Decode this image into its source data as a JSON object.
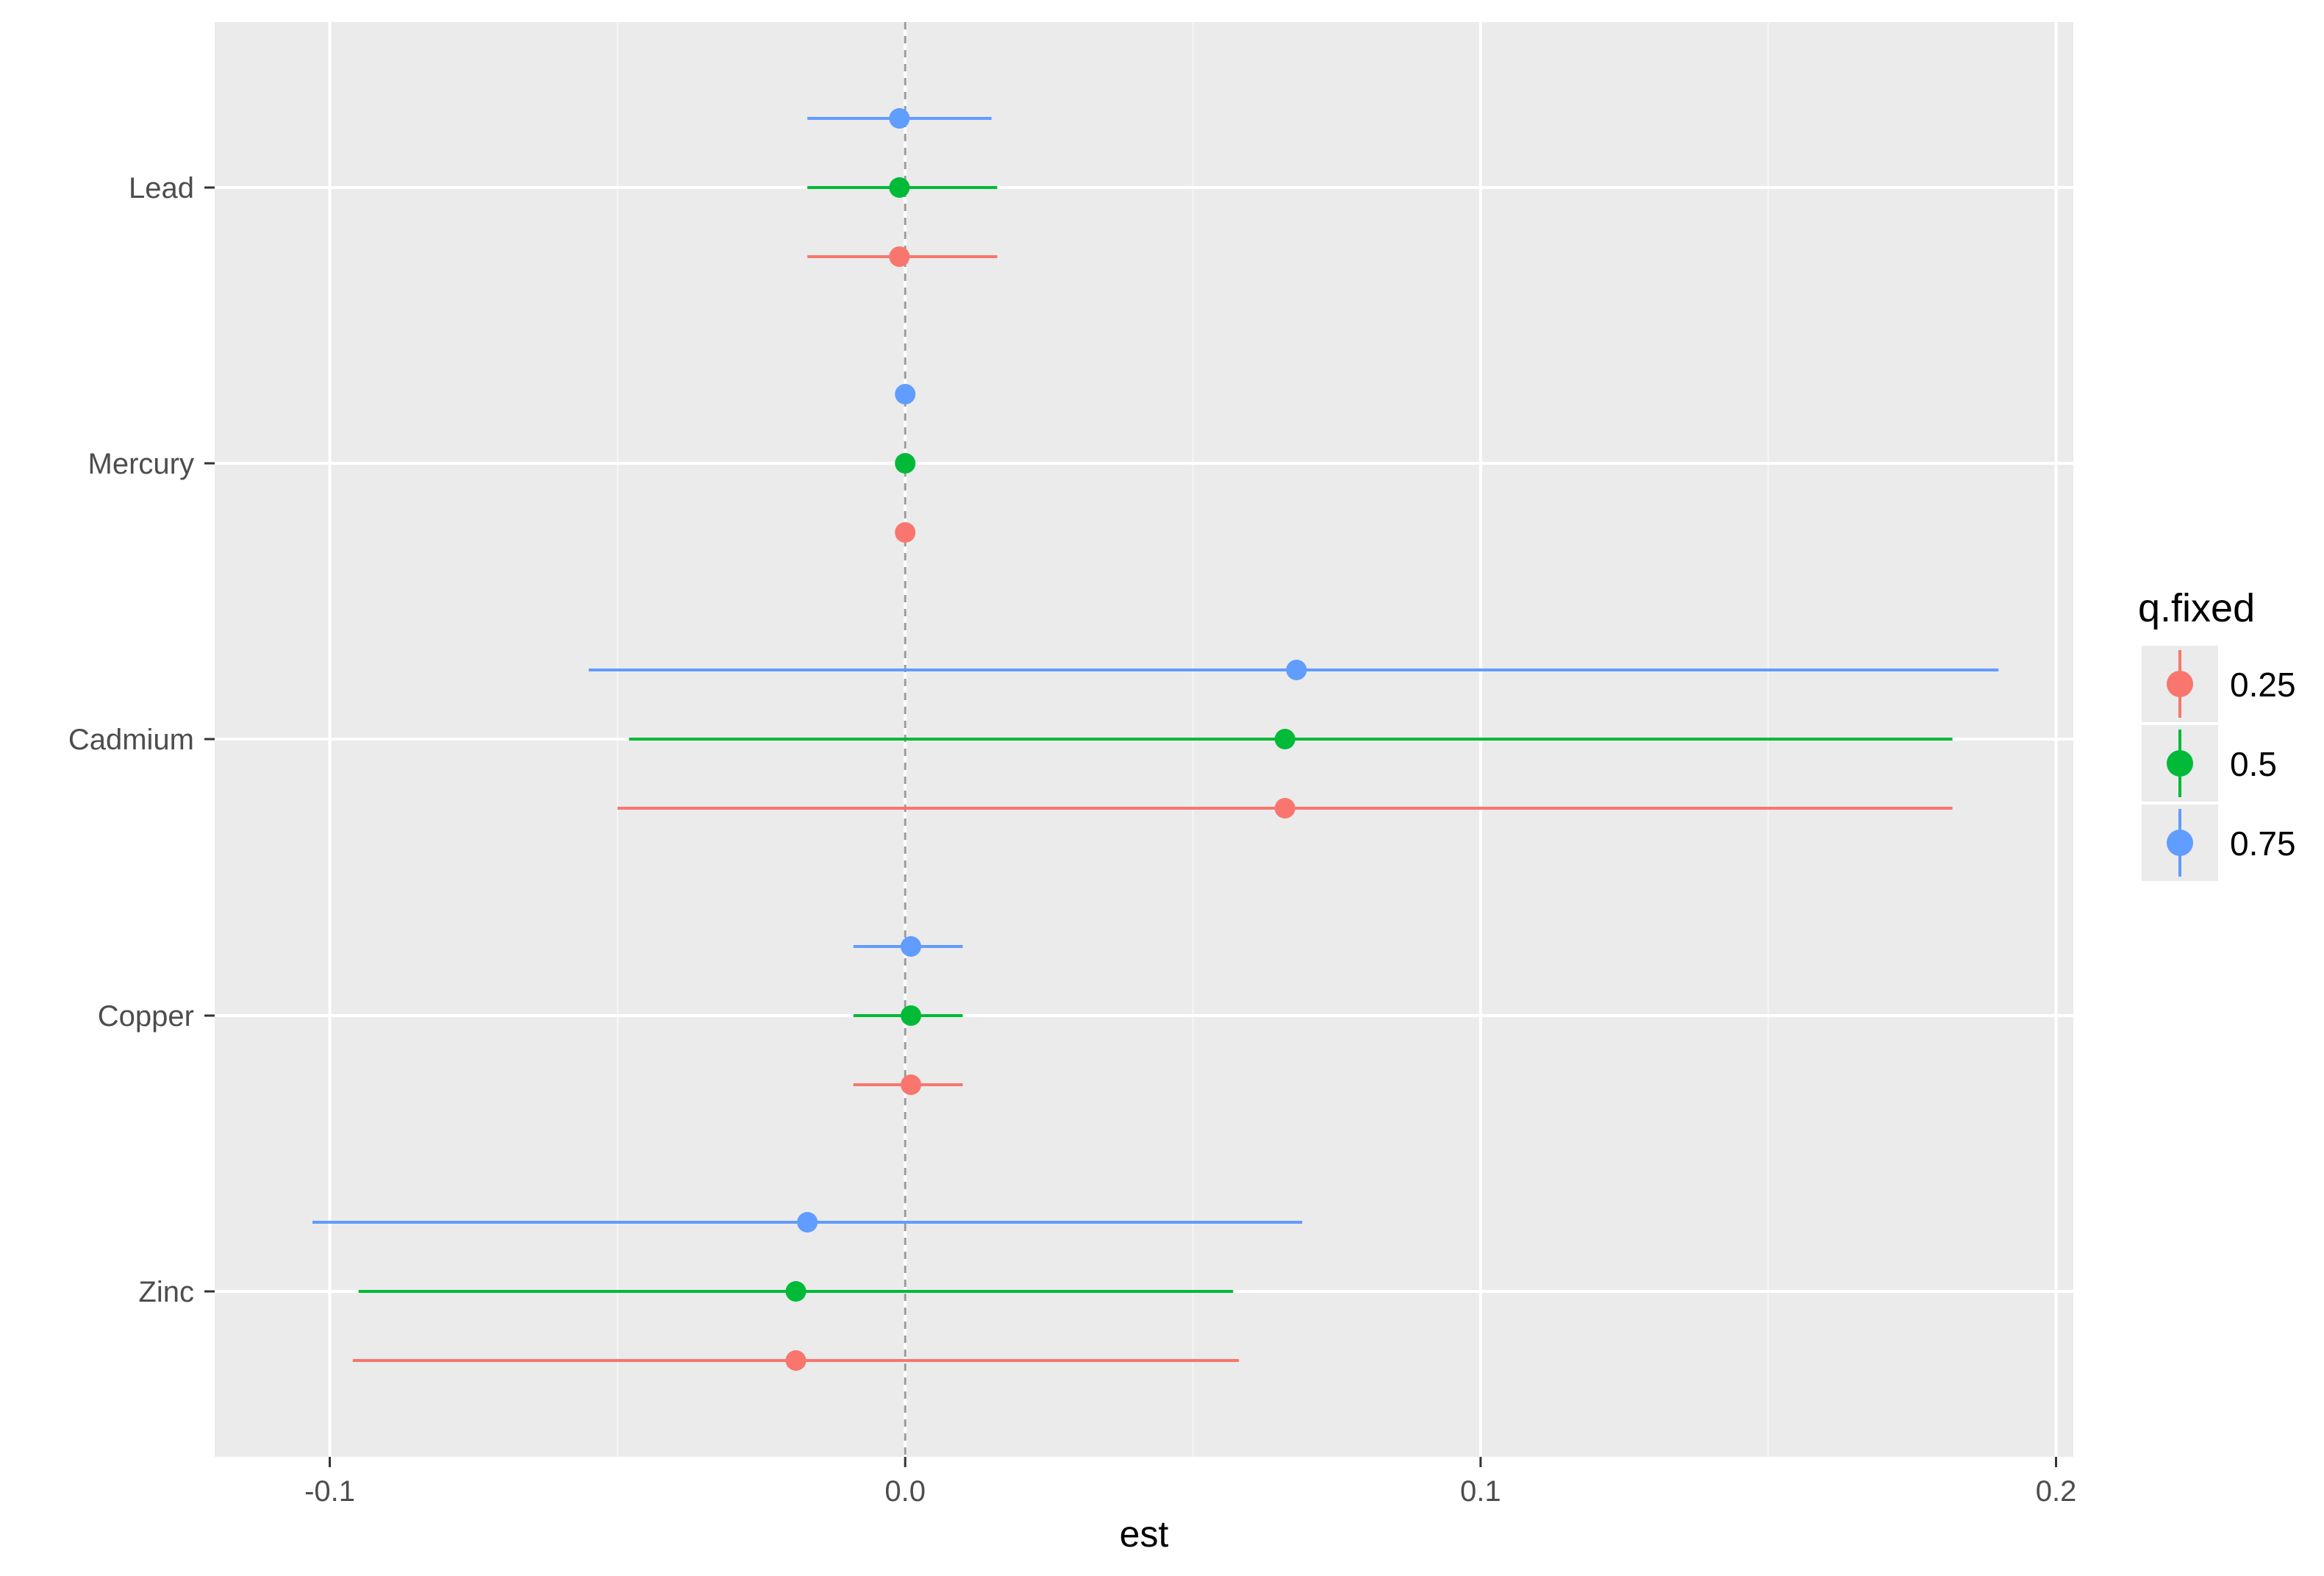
{
  "chart_data": {
    "type": "errorbar",
    "xlabel": "est",
    "ylabel": "",
    "xlim": [
      -0.12,
      0.203
    ],
    "x_ticks": [
      {
        "value": -0.1,
        "label": "-0.1"
      },
      {
        "value": 0.0,
        "label": "0.0"
      },
      {
        "value": 0.1,
        "label": "0.1"
      },
      {
        "value": 0.2,
        "label": "0.2"
      }
    ],
    "x_minor_ticks": [
      -0.05,
      0.05,
      0.15
    ],
    "reference_line": {
      "x": 0,
      "style": "dashed"
    },
    "categories": [
      "Lead",
      "Mercury",
      "Cadmium",
      "Copper",
      "Zinc"
    ],
    "legend": {
      "title": "q.fixed",
      "placement": "right"
    },
    "series": [
      {
        "name": "0.25",
        "color": "#F8766D",
        "points": [
          {
            "category": "Lead",
            "est": -0.001,
            "low": -0.017,
            "high": 0.016
          },
          {
            "category": "Mercury",
            "est": 0.0,
            "low": 0.0,
            "high": 0.0
          },
          {
            "category": "Cadmium",
            "est": 0.066,
            "low": -0.05,
            "high": 0.182
          },
          {
            "category": "Copper",
            "est": 0.001,
            "low": -0.009,
            "high": 0.01
          },
          {
            "category": "Zinc",
            "est": -0.019,
            "low": -0.096,
            "high": 0.058
          }
        ]
      },
      {
        "name": "0.5",
        "color": "#00BA38",
        "points": [
          {
            "category": "Lead",
            "est": -0.001,
            "low": -0.017,
            "high": 0.016
          },
          {
            "category": "Mercury",
            "est": 0.0,
            "low": 0.0,
            "high": 0.0
          },
          {
            "category": "Cadmium",
            "est": 0.066,
            "low": -0.048,
            "high": 0.182
          },
          {
            "category": "Copper",
            "est": 0.001,
            "low": -0.009,
            "high": 0.01
          },
          {
            "category": "Zinc",
            "est": -0.019,
            "low": -0.095,
            "high": 0.057
          }
        ]
      },
      {
        "name": "0.75",
        "color": "#619CFF",
        "points": [
          {
            "category": "Lead",
            "est": -0.001,
            "low": -0.017,
            "high": 0.015
          },
          {
            "category": "Mercury",
            "est": 0.0,
            "low": 0.0,
            "high": 0.0
          },
          {
            "category": "Cadmium",
            "est": 0.068,
            "low": -0.055,
            "high": 0.19
          },
          {
            "category": "Copper",
            "est": 0.001,
            "low": -0.009,
            "high": 0.01
          },
          {
            "category": "Zinc",
            "est": -0.017,
            "low": -0.103,
            "high": 0.069
          }
        ]
      }
    ]
  }
}
